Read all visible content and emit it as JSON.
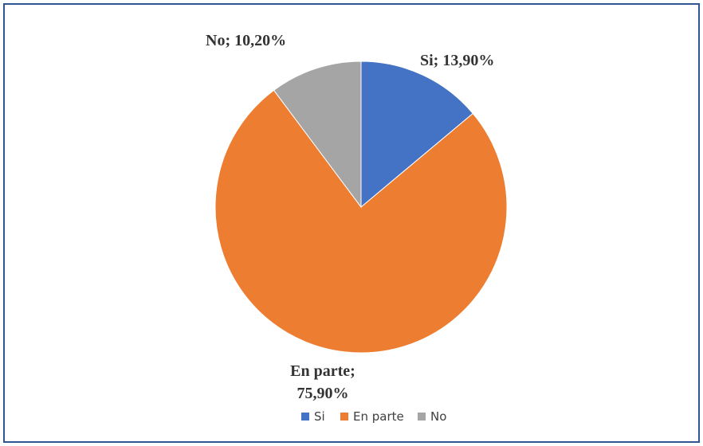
{
  "chart_data": {
    "type": "pie",
    "categories": [
      "Si",
      "En parte",
      "No"
    ],
    "values": [
      13.9,
      75.9,
      10.2
    ],
    "value_labels": [
      "Si; 13,90%",
      "En parte; 75,90%",
      "No; 10,20%"
    ],
    "colors": [
      "#4472c4",
      "#ed7d31",
      "#a5a5a5"
    ],
    "legend": "bottom"
  }
}
